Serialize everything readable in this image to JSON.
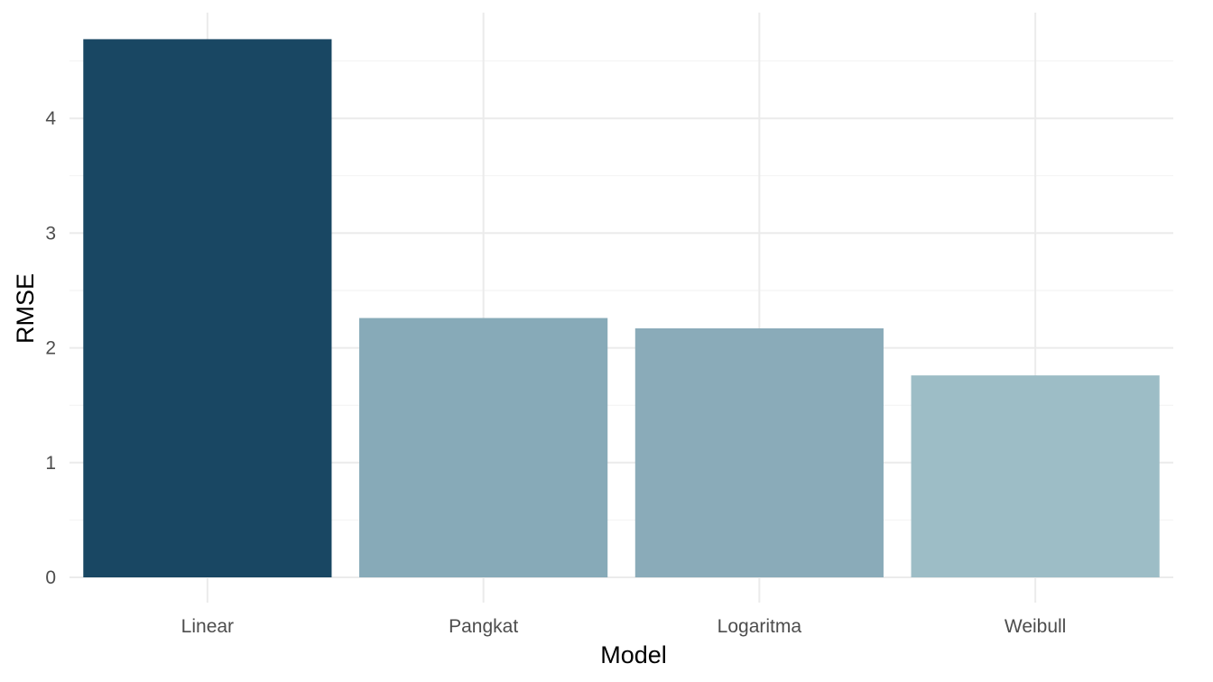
{
  "chart_data": {
    "type": "bar",
    "categories": [
      "Linear",
      "Pangkat",
      "Logaritma",
      "Weibull"
    ],
    "values": [
      4.69,
      2.26,
      2.17,
      1.76
    ],
    "colors": [
      "#194763",
      "#87aab8",
      "#8aabb9",
      "#9dbdc6"
    ],
    "xlabel": "Model",
    "ylabel": "RMSE",
    "yticks": [
      0,
      1,
      2,
      3,
      4
    ],
    "ylim": [
      0,
      4.92
    ],
    "grid": true,
    "legend": "none"
  }
}
